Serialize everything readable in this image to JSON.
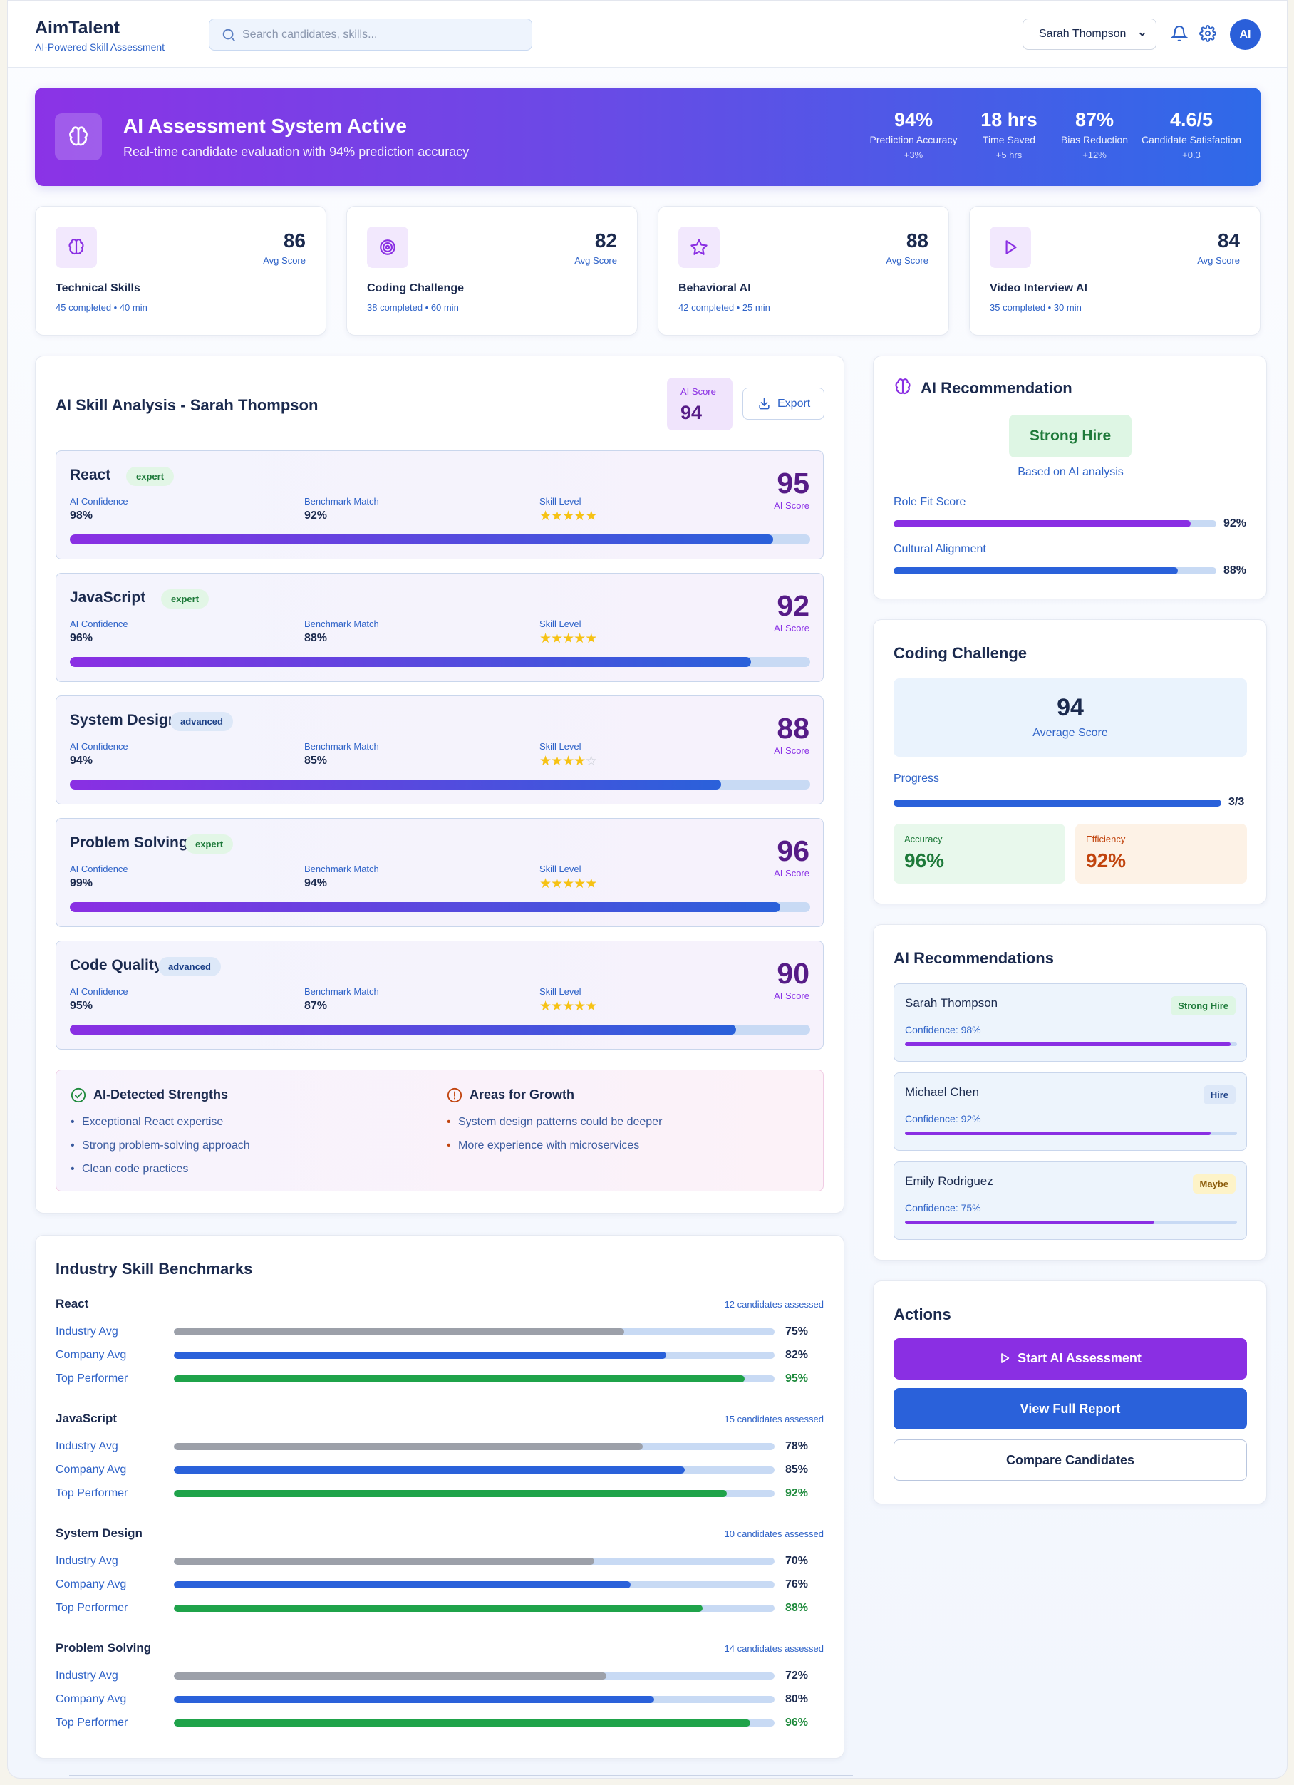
{
  "header": {
    "brand_title": "AimTalent",
    "brand_subtitle": "AI-Powered Skill Assessment",
    "search_placeholder": "Search candidates, skills...",
    "user_selected": "Sarah Thompson",
    "avatar_initials": "AI",
    "icons": [
      "search-icon",
      "chevron-down-icon",
      "bell-icon",
      "gear-icon"
    ]
  },
  "banner": {
    "title": "AI Assessment System Active",
    "subtitle": "Real-time candidate evaluation with 94% prediction accuracy",
    "stats": [
      {
        "value": "94%",
        "label": "Prediction Accuracy",
        "delta": "+3%"
      },
      {
        "value": "18 hrs",
        "label": "Time Saved",
        "delta": "+5 hrs"
      },
      {
        "value": "87%",
        "label": "Bias Reduction",
        "delta": "+12%"
      },
      {
        "value": "4.6/5",
        "label": "Candidate Satisfaction",
        "delta": "+0.3"
      }
    ]
  },
  "assessments": [
    {
      "name": "Technical Skills",
      "score": "86",
      "score_label": "Avg Score",
      "meta": "45 completed • 40 min",
      "icon": "brain-icon"
    },
    {
      "name": "Coding Challenge",
      "score": "82",
      "score_label": "Avg Score",
      "meta": "38 completed • 60 min",
      "icon": "target-icon"
    },
    {
      "name": "Behavioral AI",
      "score": "88",
      "score_label": "Avg Score",
      "meta": "42 completed • 25 min",
      "icon": "star-icon"
    },
    {
      "name": "Video Interview AI",
      "score": "84",
      "score_label": "Avg Score",
      "meta": "35 completed • 30 min",
      "icon": "play-icon"
    }
  ],
  "analysis": {
    "title": "AI Skill Analysis - Sarah Thompson",
    "ai_score_label": "AI Score",
    "ai_score": "94",
    "export_label": "Export",
    "field_labels": {
      "confidence": "AI Confidence",
      "benchmark": "Benchmark Match",
      "level": "Skill Level",
      "score": "AI Score"
    },
    "skills": [
      {
        "name": "React",
        "badge": "expert",
        "confidence": "98%",
        "benchmark": "92%",
        "stars": 5,
        "score": "95",
        "progress": 95
      },
      {
        "name": "JavaScript",
        "badge": "expert",
        "confidence": "96%",
        "benchmark": "88%",
        "stars": 5,
        "score": "92",
        "progress": 92
      },
      {
        "name": "System Design",
        "badge": "advanced",
        "confidence": "94%",
        "benchmark": "85%",
        "stars": 4,
        "score": "88",
        "progress": 88
      },
      {
        "name": "Problem Solving",
        "badge": "expert",
        "confidence": "99%",
        "benchmark": "94%",
        "stars": 5,
        "score": "96",
        "progress": 96
      },
      {
        "name": "Code Quality",
        "badge": "advanced",
        "confidence": "95%",
        "benchmark": "87%",
        "stars": 5,
        "score": "90",
        "progress": 90
      }
    ],
    "strengths_title": "AI-Detected Strengths",
    "strengths": [
      "Exceptional React expertise",
      "Strong problem-solving approach",
      "Clean code practices"
    ],
    "growth_title": "Areas for Growth",
    "growth": [
      "System design patterns could be deeper",
      "More experience with microservices"
    ]
  },
  "benchmarks": {
    "title": "Industry Skill Benchmarks",
    "row_labels": [
      "Industry Avg",
      "Company Avg",
      "Top Performer"
    ],
    "skills": [
      {
        "name": "React",
        "count": "12 candidates assessed",
        "values": [
          75,
          82,
          95
        ],
        "labels": [
          "75%",
          "82%",
          "95%"
        ]
      },
      {
        "name": "JavaScript",
        "count": "15 candidates assessed",
        "values": [
          78,
          85,
          92
        ],
        "labels": [
          "78%",
          "85%",
          "92%"
        ]
      },
      {
        "name": "System Design",
        "count": "10 candidates assessed",
        "values": [
          70,
          76,
          88
        ],
        "labels": [
          "70%",
          "76%",
          "88%"
        ]
      },
      {
        "name": "Problem Solving",
        "count": "14 candidates assessed",
        "values": [
          72,
          80,
          96
        ],
        "labels": [
          "72%",
          "80%",
          "96%"
        ]
      }
    ]
  },
  "recommendation": {
    "title": "AI Recommendation",
    "verdict": "Strong Hire",
    "basis": "Based on AI analysis",
    "metrics": [
      {
        "label": "Role Fit Score",
        "value": "92%",
        "progress": 92
      },
      {
        "label": "Cultural Alignment",
        "value": "88%",
        "progress": 88
      }
    ]
  },
  "coding": {
    "title": "Coding Challenge",
    "avg_score": "94",
    "avg_label": "Average Score",
    "progress_label": "Progress",
    "progress_value": "3/3",
    "progress": 100,
    "accuracy_label": "Accuracy",
    "accuracy": "96%",
    "efficiency_label": "Efficiency",
    "efficiency": "92%"
  },
  "candidates": {
    "title": "AI Recommendations",
    "items": [
      {
        "name": "Sarah Thompson",
        "badge": "Strong Hire",
        "confidence": "Confidence: 98%",
        "progress": 98
      },
      {
        "name": "Michael Chen",
        "badge": "Hire",
        "confidence": "Confidence: 92%",
        "progress": 92
      },
      {
        "name": "Emily Rodriguez",
        "badge": "Maybe",
        "confidence": "Confidence: 75%",
        "progress": 75
      }
    ]
  },
  "actions": {
    "title": "Actions",
    "start": "Start AI Assessment",
    "report": "View Full Report",
    "compare": "Compare Candidates"
  },
  "colors": {
    "primary_purple": "#8a2fe3",
    "primary_blue": "#2a61da",
    "success_green": "#1fa34a",
    "warning_orange": "#c1440e",
    "text_navy": "#1b2a4e"
  }
}
